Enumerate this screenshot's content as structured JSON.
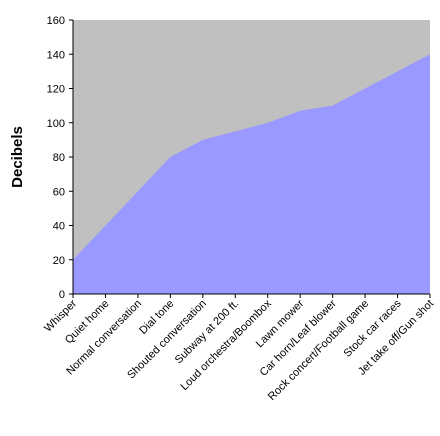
{
  "chart_data": {
    "type": "area",
    "title": "",
    "xlabel": "",
    "ylabel": "Decibels",
    "ylim": [
      0,
      160
    ],
    "yticks": [
      0,
      20,
      40,
      60,
      80,
      100,
      120,
      140,
      160
    ],
    "grid": false,
    "legend": "none",
    "categories": [
      "Whisper",
      "Quiet home",
      "Normal conversation",
      "Dial tone",
      "Shouted conversation",
      "Subway at 200 ft.",
      "Loud orchestra/Boombox",
      "Lawn mower",
      "Car horn/Leaf blower",
      "Rock concert/Football game",
      "Stock car races",
      "Jet take off/Gun shot"
    ],
    "values": [
      20,
      40,
      60,
      80,
      90,
      95,
      100,
      107,
      110,
      120,
      130,
      140
    ],
    "colors": {
      "plot_background": "#c0c0c0",
      "area_fill": "#9999ff",
      "axis": "#000000"
    }
  }
}
